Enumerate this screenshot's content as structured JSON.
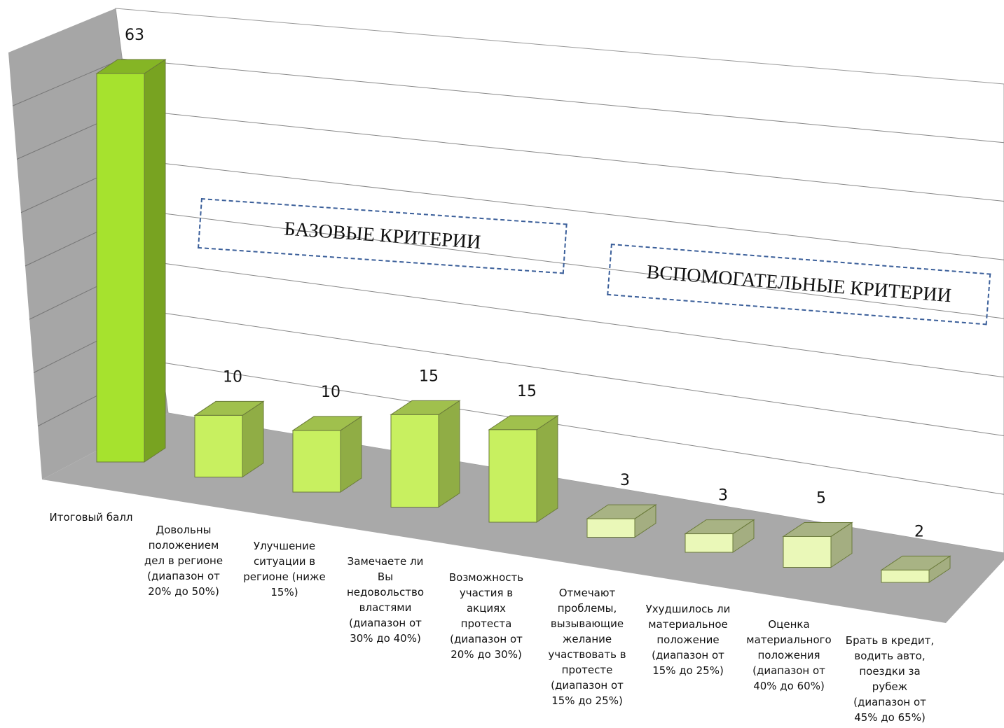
{
  "chart_data": {
    "type": "bar3d",
    "categories": [
      "Итоговый балл",
      "Довольны положением дел в регионе (диапазон от 20% до 50%)",
      "Улучшение ситуации в регионе (ниже 15%)",
      "Замечаете ли Вы недовольство властями (диапазон от 30% до 40%)",
      "Возможность участия в акциях протеста (диапазон от 20% до 30%)",
      "Отмечают проблемы, вызывающие желание участвовать в протесте (диапазон от 15% до 25%)",
      "Ухудшилось ли материальное положение (диапазон от 15% до 25%)",
      "Оценка материального положения (диапазон от 40% до 60%)",
      "Брать в кредит, водить авто, поездки за рубеж (диапазон от 45% до 65%)"
    ],
    "values": [
      63,
      10,
      10,
      15,
      15,
      3,
      3,
      5,
      2
    ],
    "colors": [
      "#a6e22e",
      "#c8f060",
      "#c8f060",
      "#c8f060",
      "#c8f060",
      "#eaf8b8",
      "#eaf8b8",
      "#eaf8b8",
      "#eaf8b8"
    ],
    "ylim": [
      0,
      70
    ],
    "grid": true,
    "annotations": [
      "БАЗОВЫЕ КРИТЕРИИ",
      "ВСПОМОГАТЕЛЬНЫЕ КРИТЕРИИ"
    ]
  }
}
